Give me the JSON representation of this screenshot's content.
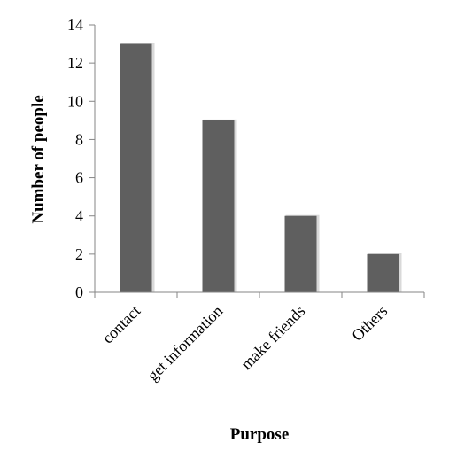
{
  "chart_data": {
    "type": "bar",
    "title": "",
    "xlabel": "Purpose",
    "ylabel": "Number of people",
    "categories": [
      "contact",
      "get information",
      "make friends",
      "Others"
    ],
    "values": [
      13,
      9,
      4,
      2
    ],
    "ylim": [
      0,
      14
    ],
    "yticks": [
      0,
      2,
      4,
      6,
      8,
      10,
      12,
      14
    ],
    "grid": false,
    "legend": "none",
    "bar_color": "#5f5f5f",
    "axis_color": "#868686"
  }
}
